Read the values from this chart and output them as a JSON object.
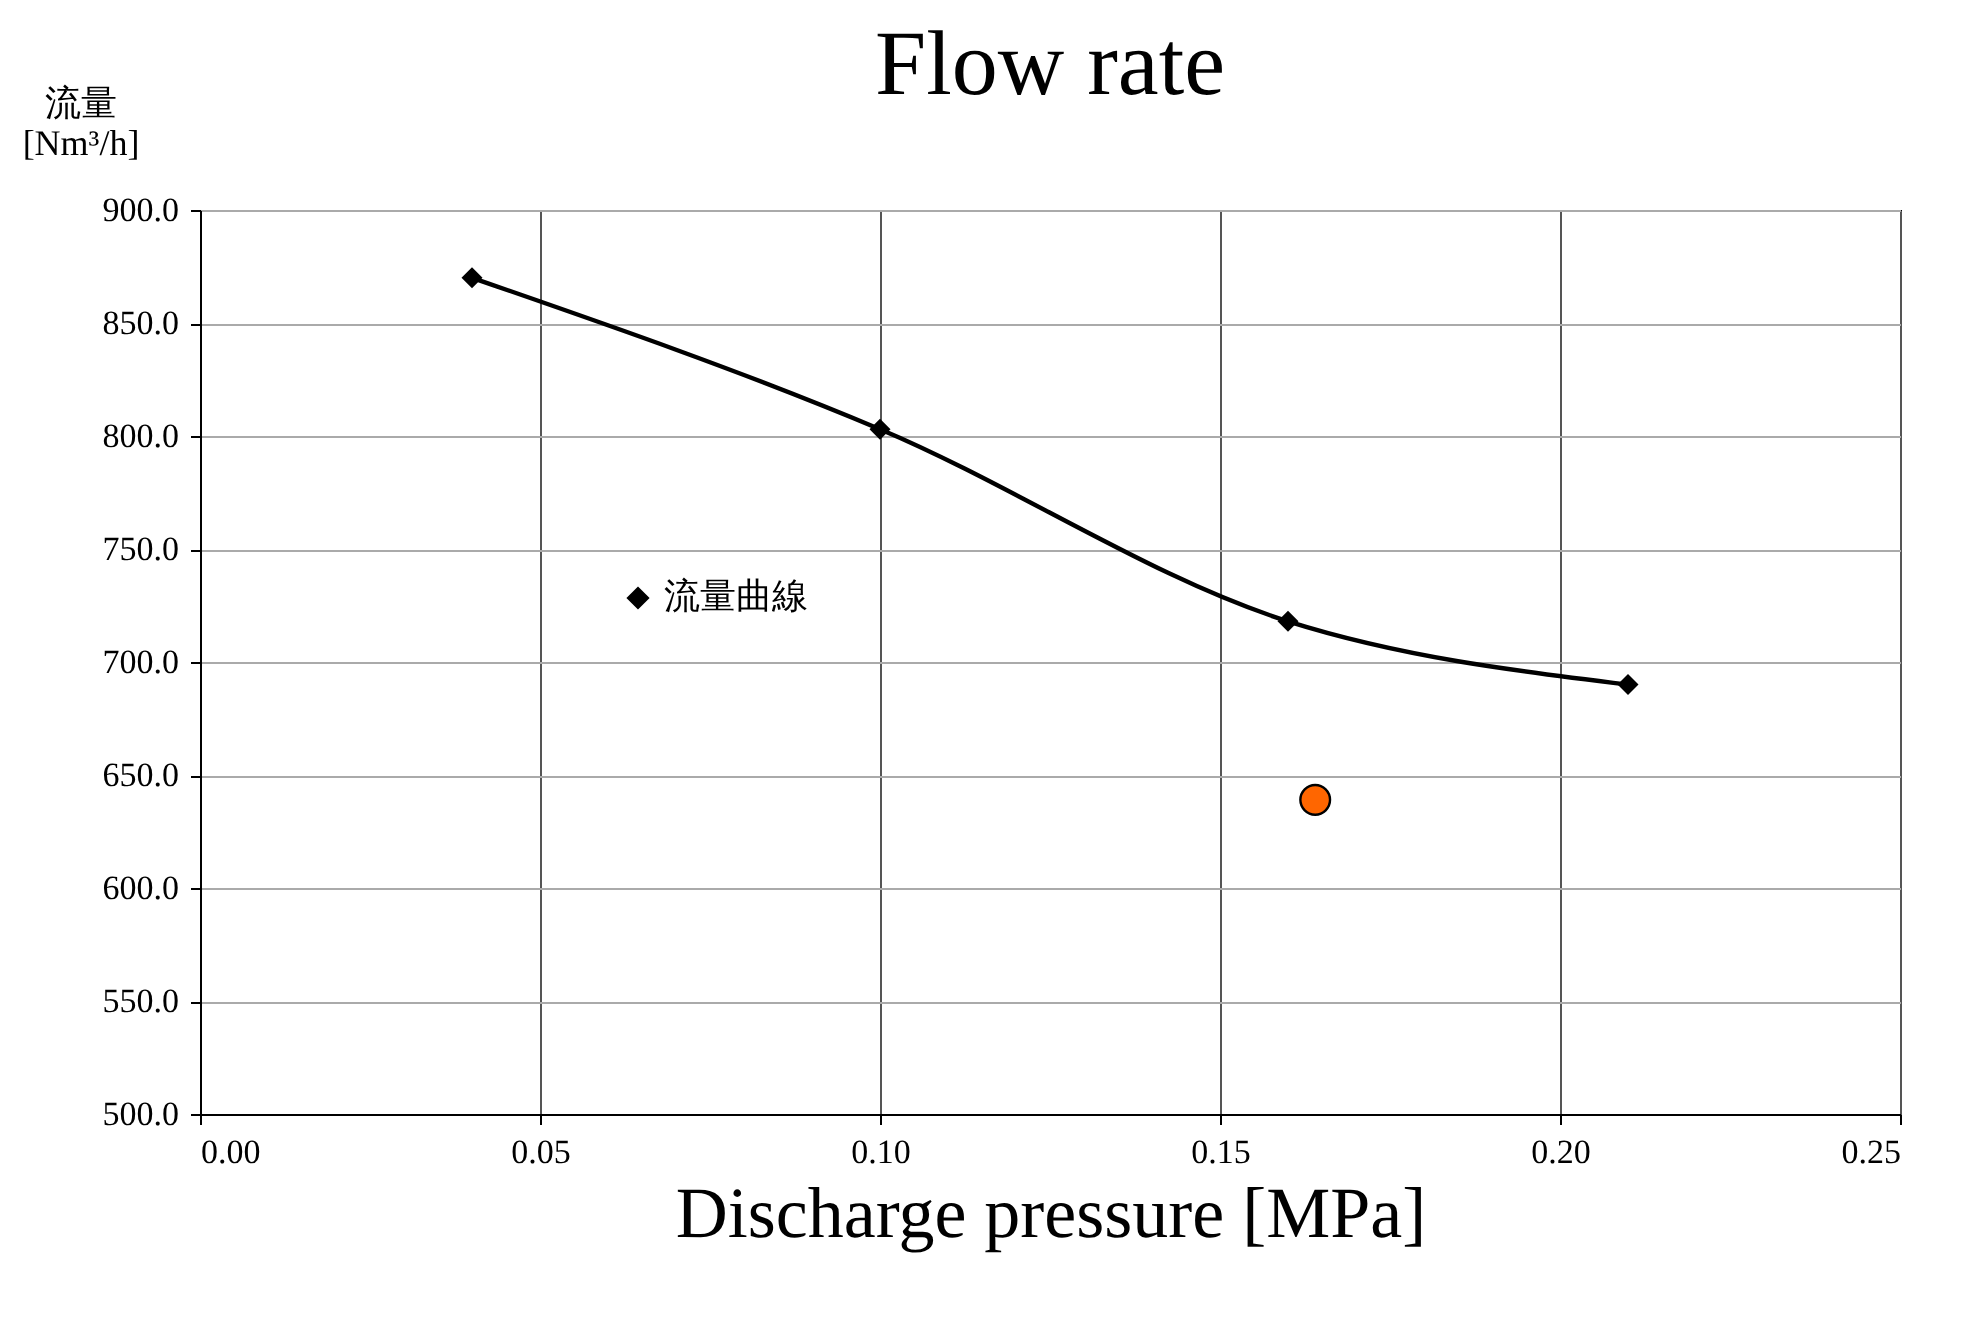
{
  "chart_data": {
    "type": "line",
    "title": "Flow rate",
    "xlabel": "Discharge pressure [MPa]",
    "ylabel": "流量\n[Nm³/h]",
    "xlim": [
      0,
      0.25
    ],
    "xticks": [
      {
        "value": 0,
        "label": "0.00"
      },
      {
        "value": 0.05,
        "label": "0.05"
      },
      {
        "value": 0.1,
        "label": "0.10"
      },
      {
        "value": 0.15,
        "label": "0.15"
      },
      {
        "value": 0.2,
        "label": "0.20"
      },
      {
        "value": 0.25,
        "label": "0.25"
      }
    ],
    "ylim": [
      500,
      900
    ],
    "yticks": [
      {
        "value": 500,
        "label": "500.0"
      },
      {
        "value": 550,
        "label": "550.0"
      },
      {
        "value": 600,
        "label": "600.0"
      },
      {
        "value": 650,
        "label": "650.0"
      },
      {
        "value": 700,
        "label": "700.0"
      },
      {
        "value": 750,
        "label": "750.0"
      },
      {
        "value": 800,
        "label": "800.0"
      },
      {
        "value": 850,
        "label": "850.0"
      },
      {
        "value": 900,
        "label": "900.0"
      }
    ],
    "grid": true,
    "legend": "left",
    "line_style": "solid",
    "series": [
      {
        "name": "流量曲線",
        "color": "#000000",
        "marker": "diamond",
        "x": [
          0.04,
          0.1,
          0.16,
          0.21
        ],
        "values": [
          870,
          803,
          718,
          690
        ]
      },
      {
        "type": "scatter",
        "color": "#ff6600",
        "marker": "circle",
        "x": [
          0.164
        ],
        "values": [
          639
        ]
      }
    ]
  }
}
